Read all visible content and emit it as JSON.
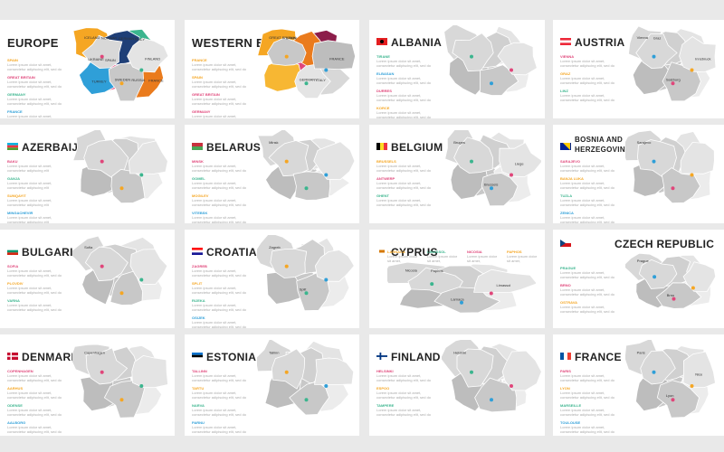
{
  "slides": [
    {
      "title": "EUROPE",
      "legend": [
        {
          "label": "SPAIN",
          "color": "#f5a623"
        },
        {
          "label": "GREAT BRITAIN",
          "color": "#e0467a"
        },
        {
          "label": "GERMANY",
          "color": "#3bb58e"
        },
        {
          "label": "FRANCE",
          "color": "#2f9fd8"
        }
      ],
      "desc": "Lorem ipsum dolor sit amet, consectetur adipiscing elit, sed do eiusmod tempor",
      "regions": [
        "ICELAND",
        "SWEDEN",
        "FINLAND",
        "NORWAY",
        "RUSSIA",
        "UKRAINE",
        "GERMANY",
        "FRANCE",
        "SPAIN",
        "ITALY",
        "TURKEY"
      ]
    },
    {
      "title": "WESTERN EUROPE",
      "legend": [
        {
          "label": "FRANCE",
          "color": "#f5a623"
        },
        {
          "label": "SPAIN",
          "color": "#f5a623"
        },
        {
          "label": "GREAT BRITAIN",
          "color": "#e0467a"
        },
        {
          "label": "GERMANY",
          "color": "#e0467a"
        }
      ],
      "desc": "Lorem ipsum dolor sit amet, consectetur adipiscing elit, sed do eiusmod tempor",
      "regions": [
        "GREAT BRITAIN",
        "GERMANY",
        "FRANCE",
        "SPAIN",
        "ITALY"
      ]
    },
    {
      "title": "ALBANIA",
      "legend": [
        {
          "label": "TIRANE",
          "color": "#3bb58e"
        },
        {
          "label": "ELBASAN",
          "color": "#2f9fd8"
        },
        {
          "label": "DURRES",
          "color": "#e0467a"
        },
        {
          "label": "KORCE",
          "color": "#f5a623"
        },
        {
          "label": "SHKODER",
          "color": "#f5a623"
        },
        {
          "label": "VLORE",
          "color": "#e0467a"
        }
      ],
      "desc": "Lorem ipsum dolor sit amet, consectetur adipiscing elit, sed do eiusmod tempor",
      "cities": []
    },
    {
      "title": "AUSTRIA",
      "legend": [
        {
          "label": "VIENNA",
          "color": "#e0467a"
        },
        {
          "label": "GRAZ",
          "color": "#f5a623"
        },
        {
          "label": "LINZ",
          "color": "#3bb58e"
        }
      ],
      "desc": "Lorem ipsum dolor sit amet, consectetur adipiscing elit, sed do eiusmod tempor",
      "cities": [
        "Vienna",
        "Salzburg",
        "Innsbruck",
        "Graz"
      ]
    },
    {
      "title": "AZERBAIJAN",
      "legend": [
        {
          "label": "BAKU",
          "color": "#e0467a"
        },
        {
          "label": "GANJA",
          "color": "#3bb58e"
        },
        {
          "label": "SUMQAYIT",
          "color": "#f5a623"
        },
        {
          "label": "MINGACHEVIR",
          "color": "#2f9fd8"
        }
      ],
      "desc": "Lorem ipsum dolor sit amet, consectetur adipiscing elit",
      "cities": []
    },
    {
      "title": "BELARUS",
      "legend": [
        {
          "label": "MINSK",
          "color": "#e0467a"
        },
        {
          "label": "GOMEL",
          "color": "#3bb58e"
        },
        {
          "label": "MOGILEV",
          "color": "#f5a623"
        },
        {
          "label": "VITEBSK",
          "color": "#2f9fd8"
        },
        {
          "label": "GRODNO",
          "color": "#3bb58e"
        },
        {
          "label": "BREST",
          "color": "#f5a623"
        }
      ],
      "desc": "Lorem ipsum dolor sit amet, consectetur adipiscing elit, sed do eiusmod tempor",
      "cities": [
        "Minsk"
      ]
    },
    {
      "title": "BELGIUM",
      "legend": [
        {
          "label": "BRUSSELS",
          "color": "#f5a623"
        },
        {
          "label": "ANTWERP",
          "color": "#e0467a"
        },
        {
          "label": "GHENT",
          "color": "#3bb58e"
        }
      ],
      "desc": "Lorem ipsum dolor sit amet, consectetur adipiscing elit, sed do eiusmod tempor",
      "cities": [
        "Bruges",
        "Brussels",
        "Liege"
      ]
    },
    {
      "title": "BOSNIA AND",
      "title2": "HERZEGOVINA",
      "legend": [
        {
          "label": "SARAJEVO",
          "color": "#e0467a"
        },
        {
          "label": "BANJA LUKA",
          "color": "#f5a623"
        },
        {
          "label": "TUZLA",
          "color": "#3bb58e"
        },
        {
          "label": "ZENICA",
          "color": "#2f9fd8"
        },
        {
          "label": "MOSTAR",
          "color": "#3bb58e"
        }
      ],
      "desc": "Lorem ipsum dolor sit amet, consectetur adipiscing elit, sed do eiusmod tempor",
      "cities": [
        "Sarajevo"
      ]
    },
    {
      "title": "BULGARIA",
      "legend": [
        {
          "label": "SOFIA",
          "color": "#e0467a"
        },
        {
          "label": "PLOVDIV",
          "color": "#f5a623"
        },
        {
          "label": "VARNA",
          "color": "#3bb58e"
        }
      ],
      "desc": "Lorem ipsum dolor sit amet, consectetur adipiscing elit, sed do eiusmod tempor",
      "cities": [
        "Sofia"
      ]
    },
    {
      "title": "CROATIA",
      "legend": [
        {
          "label": "ZAGREB",
          "color": "#e0467a"
        },
        {
          "label": "SPLIT",
          "color": "#f5a623"
        },
        {
          "label": "RIJEKA",
          "color": "#3bb58e"
        },
        {
          "label": "OSIJEK",
          "color": "#2f9fd8"
        },
        {
          "label": "ZADAR",
          "color": "#f5a623"
        }
      ],
      "desc": "Lorem ipsum dolor sit amet, consectetur adipiscing elit, sed do eiusmod tempor",
      "cities": [
        "Zagreb",
        "Split"
      ]
    },
    {
      "title": "CYPRUS",
      "legend": [
        {
          "label": "LARNACA",
          "color": "#f5a623"
        },
        {
          "label": "LIMASSOL",
          "color": "#3bb58e"
        },
        {
          "label": "NICOSIA",
          "color": "#e0467a"
        },
        {
          "label": "PAPHOS",
          "color": "#f5a623"
        }
      ],
      "desc": "Lorem ipsum dolor sit amet, consectetur adipiscing elit, sed do eiusmod tempor",
      "cities": [
        "Nicosia",
        "Larnaca",
        "Limassol",
        "Paphos"
      ]
    },
    {
      "title": "CZECH REPUBLIC",
      "legend": [
        {
          "label": "PRAGUE",
          "color": "#3bb58e"
        },
        {
          "label": "BRNO",
          "color": "#e0467a"
        },
        {
          "label": "OSTRAVA",
          "color": "#f5a623"
        }
      ],
      "desc": "Lorem ipsum dolor sit amet, consectetur adipiscing elit, sed do eiusmod tempor",
      "cities": [
        "Prague",
        "Brno"
      ]
    },
    {
      "title": "DENMARK",
      "legend": [
        {
          "label": "COPENHAGEN",
          "color": "#e0467a"
        },
        {
          "label": "AARHUS",
          "color": "#f5a623"
        },
        {
          "label": "ODENSE",
          "color": "#3bb58e"
        },
        {
          "label": "AALBORG",
          "color": "#2f9fd8"
        },
        {
          "label": "ESBJERG",
          "color": "#f5a623"
        }
      ],
      "desc": "Lorem ipsum dolor sit amet, consectetur adipiscing elit, sed do eiusmod tempor",
      "cities": [
        "Copenhagen"
      ]
    },
    {
      "title": "ESTONIA",
      "legend": [
        {
          "label": "TALLINN",
          "color": "#e0467a"
        },
        {
          "label": "TARTU",
          "color": "#f5a623"
        },
        {
          "label": "NARVA",
          "color": "#3bb58e"
        },
        {
          "label": "PARNU",
          "color": "#2f9fd8"
        }
      ],
      "desc": "Lorem ipsum dolor sit amet, consectetur adipiscing elit, sed do eiusmod tempor",
      "cities": [
        "Tallinn"
      ]
    },
    {
      "title": "FINLAND",
      "legend": [
        {
          "label": "HELSINKI",
          "color": "#e0467a"
        },
        {
          "label": "ESPOO",
          "color": "#f5a623"
        },
        {
          "label": "TAMPERE",
          "color": "#3bb58e"
        }
      ],
      "desc": "Lorem ipsum dolor sit amet, consectetur adipiscing elit, sed do eiusmod tempor",
      "cities": [
        "Helsinki"
      ]
    },
    {
      "title": "FRANCE",
      "legend": [
        {
          "label": "PARIS",
          "color": "#e0467a"
        },
        {
          "label": "LYON",
          "color": "#f5a623"
        },
        {
          "label": "MARSEILLE",
          "color": "#3bb58e"
        },
        {
          "label": "TOULOUSE",
          "color": "#2f9fd8"
        },
        {
          "label": "NICE",
          "color": "#f5a623"
        }
      ],
      "desc": "Lorem ipsum dolor sit amet, consectetur adipiscing elit, sed do eiusmod tempor",
      "cities": [
        "Paris",
        "Lyon",
        "Nice"
      ]
    }
  ]
}
